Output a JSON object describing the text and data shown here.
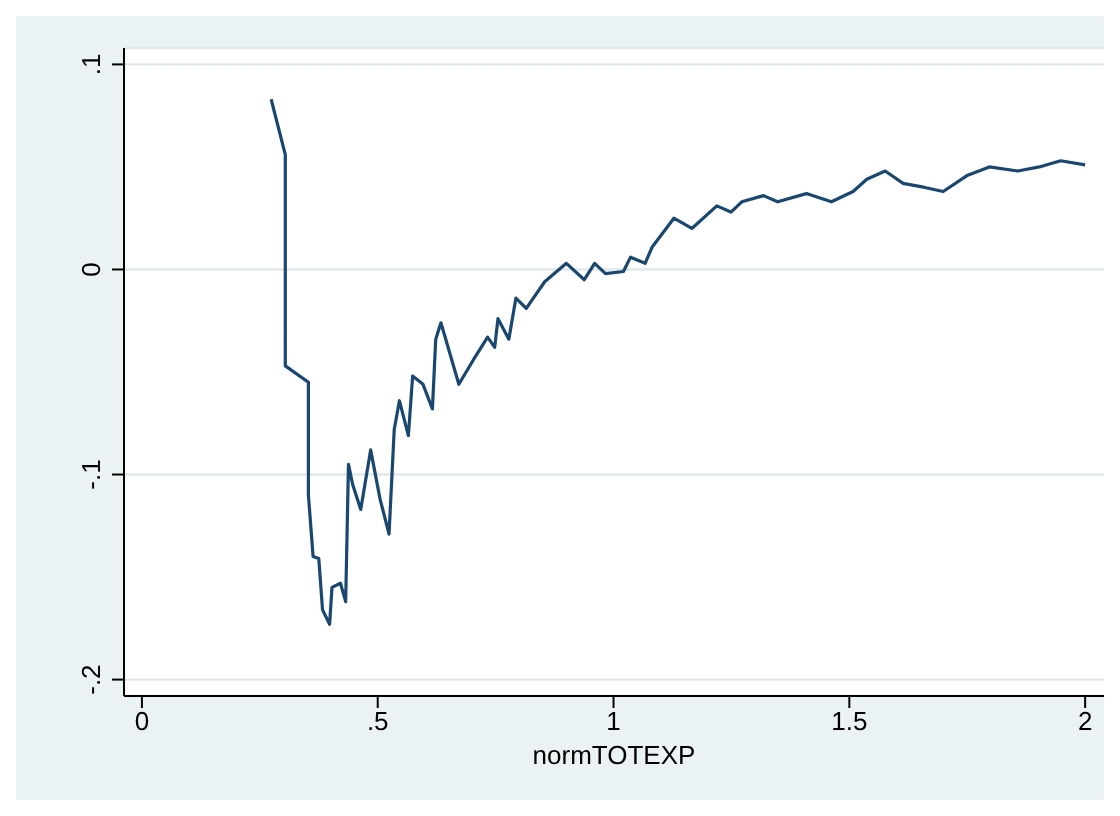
{
  "chart_data": {
    "type": "line",
    "xlabel": "normTOTEXP",
    "x": [
      0.274,
      0.304,
      0.304,
      0.353,
      0.353,
      0.363,
      0.375,
      0.383,
      0.398,
      0.403,
      0.421,
      0.432,
      0.438,
      0.447,
      0.464,
      0.485,
      0.505,
      0.524,
      0.535,
      0.546,
      0.565,
      0.574,
      0.596,
      0.616,
      0.623,
      0.634,
      0.672,
      0.703,
      0.733,
      0.748,
      0.755,
      0.778,
      0.793,
      0.815,
      0.854,
      0.9,
      0.938,
      0.96,
      0.983,
      1.021,
      1.036,
      1.067,
      1.082,
      1.128,
      1.166,
      1.219,
      1.249,
      1.272,
      1.318,
      1.348,
      1.409,
      1.462,
      1.508,
      1.537,
      1.576,
      1.614,
      1.66,
      1.699,
      1.751,
      1.797,
      1.857,
      1.903,
      1.948,
      2.0
    ],
    "series": [
      {
        "color": "#1a476f",
        "values": [
          0.083,
          0.056,
          -0.047,
          -0.055,
          -0.11,
          -0.14,
          -0.141,
          -0.166,
          -0.173,
          -0.155,
          -0.153,
          -0.162,
          -0.095,
          -0.105,
          -0.117,
          -0.088,
          -0.112,
          -0.129,
          -0.078,
          -0.064,
          -0.081,
          -0.052,
          -0.056,
          -0.068,
          -0.034,
          -0.026,
          -0.056,
          -0.044,
          -0.033,
          -0.038,
          -0.024,
          -0.034,
          -0.014,
          -0.019,
          -0.006,
          0.003,
          -0.005,
          0.003,
          -0.002,
          -0.001,
          0.006,
          0.003,
          0.011,
          0.025,
          0.02,
          0.031,
          0.028,
          0.033,
          0.036,
          0.033,
          0.037,
          0.033,
          0.038,
          0.044,
          0.048,
          0.042,
          0.04,
          0.038,
          0.046,
          0.05,
          0.048,
          0.05,
          0.053,
          0.051
        ]
      }
    ],
    "xlim": [
      -0.038,
      2.04
    ],
    "ylim": [
      -0.208,
      0.108
    ],
    "xticks": [
      0,
      {
        "value": 0.5,
        "label": ".5"
      },
      1,
      1.5,
      2
    ],
    "yticks": [
      {
        "value": -0.2,
        "label": "-.2"
      },
      {
        "value": -0.1,
        "label": "-.1"
      },
      0,
      {
        "value": 0.1,
        "label": ".1"
      }
    ],
    "grid": "y",
    "marker": "none",
    "line_style": "solid"
  }
}
